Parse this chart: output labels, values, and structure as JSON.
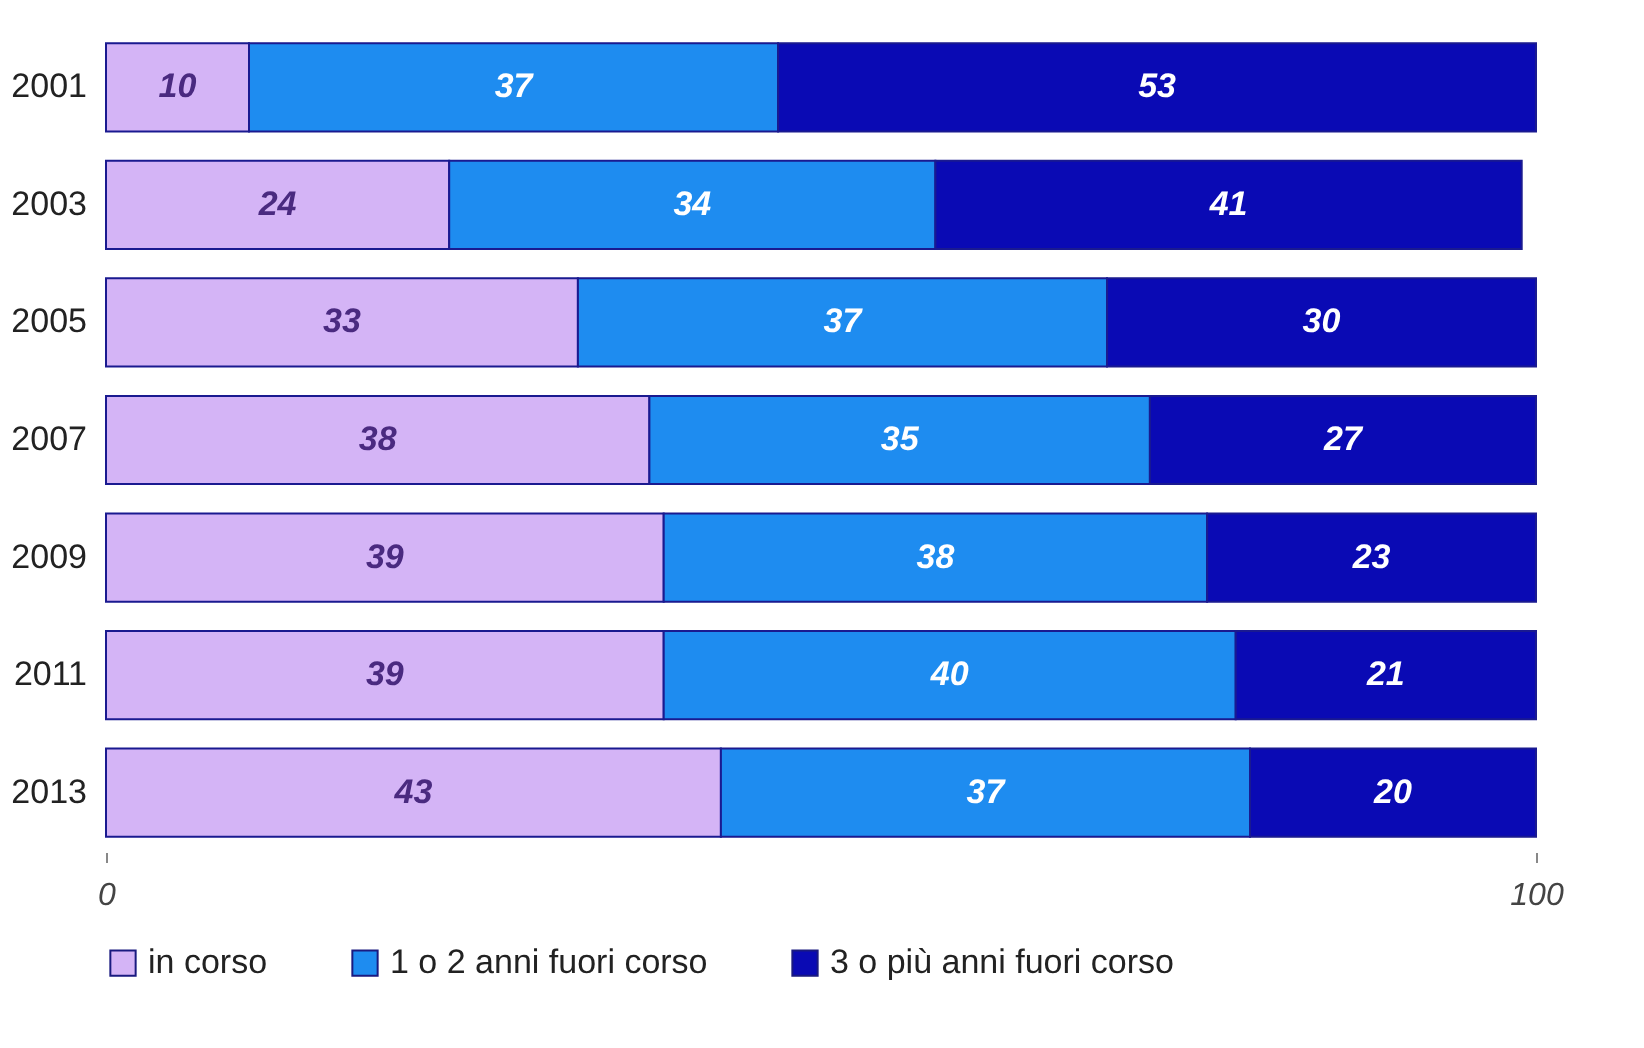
{
  "chart_data": {
    "type": "bar",
    "orientation": "horizontal",
    "stacked": true,
    "data_labels": true,
    "legend": "bottom",
    "grid": false,
    "categories": [
      "2001",
      "2003",
      "2005",
      "2007",
      "2009",
      "2011",
      "2013"
    ],
    "xlim": [
      0,
      100
    ],
    "xticks": [
      0,
      100
    ],
    "series": [
      {
        "name": "in corso",
        "color": "#d4b4f6",
        "values": [
          10,
          24,
          33,
          38,
          39,
          39,
          43
        ]
      },
      {
        "name": "1 o 2 anni fuori corso",
        "color": "#1e8cf0",
        "values": [
          37,
          34,
          37,
          35,
          38,
          40,
          37
        ]
      },
      {
        "name": "3 o più anni fuori corso",
        "color": "#0a0ab4",
        "values": [
          53,
          41,
          30,
          27,
          23,
          21,
          20
        ]
      }
    ]
  }
}
